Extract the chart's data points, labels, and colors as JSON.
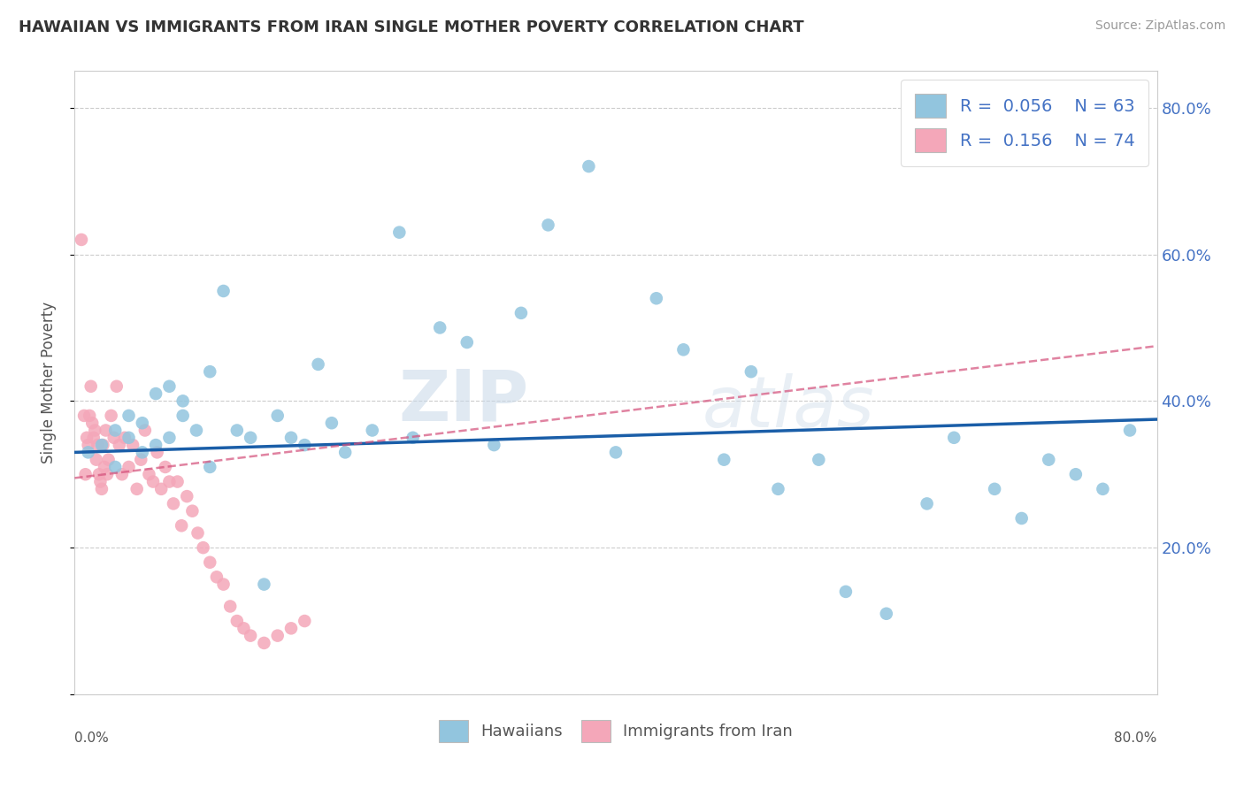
{
  "title": "HAWAIIAN VS IMMIGRANTS FROM IRAN SINGLE MOTHER POVERTY CORRELATION CHART",
  "source": "Source: ZipAtlas.com",
  "ylabel": "Single Mother Poverty",
  "xlim": [
    0.0,
    0.8
  ],
  "ylim": [
    0.0,
    0.85
  ],
  "yticks": [
    0.0,
    0.2,
    0.4,
    0.6,
    0.8
  ],
  "ytick_labels": [
    "",
    "20.0%",
    "40.0%",
    "60.0%",
    "80.0%"
  ],
  "hawaiian_color": "#92c5de",
  "iran_color": "#f4a7b9",
  "trend_hawaiian_color": "#1a5ea8",
  "trend_iran_color": "#d44f7a",
  "watermark_zip": "ZIP",
  "watermark_atlas": "atlas",
  "hawaiian_x": [
    0.01,
    0.02,
    0.03,
    0.03,
    0.04,
    0.04,
    0.05,
    0.05,
    0.06,
    0.06,
    0.07,
    0.07,
    0.08,
    0.08,
    0.09,
    0.1,
    0.1,
    0.11,
    0.12,
    0.13,
    0.14,
    0.15,
    0.16,
    0.17,
    0.18,
    0.19,
    0.2,
    0.22,
    0.24,
    0.25,
    0.27,
    0.29,
    0.31,
    0.33,
    0.35,
    0.38,
    0.4,
    0.43,
    0.45,
    0.48,
    0.5,
    0.52,
    0.55,
    0.57,
    0.6,
    0.63,
    0.65,
    0.68,
    0.7,
    0.72,
    0.74,
    0.76,
    0.78
  ],
  "hawaiian_y": [
    0.33,
    0.34,
    0.31,
    0.36,
    0.35,
    0.38,
    0.33,
    0.37,
    0.34,
    0.41,
    0.35,
    0.42,
    0.4,
    0.38,
    0.36,
    0.44,
    0.31,
    0.55,
    0.36,
    0.35,
    0.15,
    0.38,
    0.35,
    0.34,
    0.45,
    0.37,
    0.33,
    0.36,
    0.63,
    0.35,
    0.5,
    0.48,
    0.34,
    0.52,
    0.64,
    0.72,
    0.33,
    0.54,
    0.47,
    0.32,
    0.44,
    0.28,
    0.32,
    0.14,
    0.11,
    0.26,
    0.35,
    0.28,
    0.24,
    0.32,
    0.3,
    0.28,
    0.36
  ],
  "iran_x": [
    0.005,
    0.007,
    0.008,
    0.009,
    0.01,
    0.011,
    0.012,
    0.013,
    0.014,
    0.015,
    0.016,
    0.017,
    0.018,
    0.019,
    0.02,
    0.021,
    0.022,
    0.023,
    0.024,
    0.025,
    0.027,
    0.029,
    0.031,
    0.033,
    0.035,
    0.037,
    0.04,
    0.043,
    0.046,
    0.049,
    0.052,
    0.055,
    0.058,
    0.061,
    0.064,
    0.067,
    0.07,
    0.073,
    0.076,
    0.079,
    0.083,
    0.087,
    0.091,
    0.095,
    0.1,
    0.105,
    0.11,
    0.115,
    0.12,
    0.125,
    0.13,
    0.14,
    0.15,
    0.16,
    0.17
  ],
  "iran_y": [
    0.62,
    0.38,
    0.3,
    0.35,
    0.34,
    0.38,
    0.42,
    0.37,
    0.35,
    0.36,
    0.32,
    0.34,
    0.3,
    0.29,
    0.28,
    0.34,
    0.31,
    0.36,
    0.3,
    0.32,
    0.38,
    0.35,
    0.42,
    0.34,
    0.3,
    0.35,
    0.31,
    0.34,
    0.28,
    0.32,
    0.36,
    0.3,
    0.29,
    0.33,
    0.28,
    0.31,
    0.29,
    0.26,
    0.29,
    0.23,
    0.27,
    0.25,
    0.22,
    0.2,
    0.18,
    0.16,
    0.15,
    0.12,
    0.1,
    0.09,
    0.08,
    0.07,
    0.08,
    0.09,
    0.1
  ],
  "trend_hawaiian_x0": 0.0,
  "trend_hawaiian_x1": 0.8,
  "trend_hawaiian_y0": 0.33,
  "trend_hawaiian_y1": 0.375,
  "trend_iran_x0": 0.0,
  "trend_iran_x1": 0.8,
  "trend_iran_y0": 0.295,
  "trend_iran_y1": 0.475
}
